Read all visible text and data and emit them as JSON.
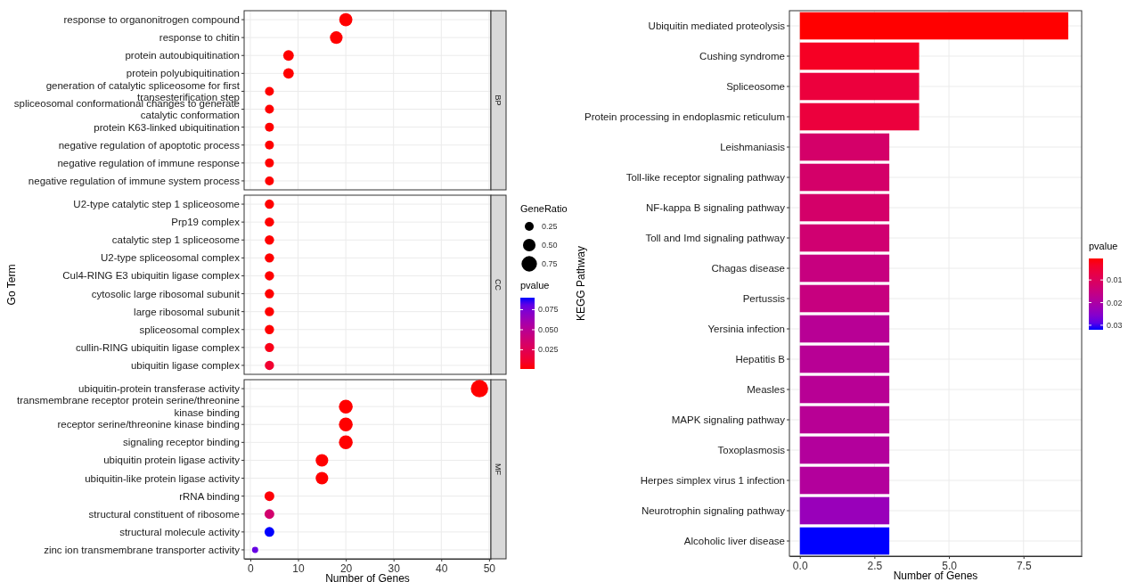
{
  "chart_data": [
    {
      "type": "scatter",
      "orientation": "horizontal",
      "xlabel": "Number of Genes",
      "ylabel": "Go Term",
      "annotations": [
        "BP",
        "CC",
        "MF"
      ],
      "legend_title": "GeneRatio",
      "size_legend": [
        0.25,
        {
          "value": 0.5,
          "label": "0.50"
        },
        0.75
      ],
      "clabel": "pvalue",
      "clim": [
        0.001,
        0.09
      ],
      "cticks": [
        0.025,
        {
          "value": 0.05,
          "label": "0.050"
        },
        0.075
      ],
      "categories": [
        "response to organonitrogen compound",
        "response to chitin",
        "protein autoubiquitination",
        "protein polyubiquitination",
        "generation of catalytic spliceosome for first\ntransesterification step",
        "spliceosomal conformational changes to generate\ncatalytic conformation",
        "protein K63-linked ubiquitination",
        "negative regulation of apoptotic process",
        "negative regulation of immune response",
        "negative regulation of immune system process",
        "U2-type catalytic step 1 spliceosome",
        "Prp19 complex",
        "catalytic step 1 spliceosome",
        "U2-type spliceosomal complex",
        "Cul4-RING E3 ubiquitin ligase complex",
        "cytosolic large ribosomal subunit",
        "large ribosomal subunit",
        "spliceosomal complex",
        "cullin-RING ubiquitin ligase complex",
        "ubiquitin ligase complex",
        "ubiquitin-protein transferase activity",
        "transmembrane receptor protein serine/threonine\nkinase binding",
        "receptor serine/threonine kinase binding",
        "signaling receptor binding",
        "ubiquitin protein ligase activity",
        "ubiquitin-like protein ligase activity",
        "rRNA binding",
        "structural constituent of ribosome",
        "structural molecule activity",
        "zinc ion transmembrane transporter activity"
      ],
      "values": [
        20,
        18,
        8,
        8,
        4,
        4,
        4,
        4,
        4,
        4,
        4,
        4,
        4,
        4,
        4,
        4,
        4,
        4,
        4,
        4,
        48,
        20,
        20,
        20,
        15,
        15,
        4,
        4,
        4,
        1
      ],
      "sizes": [
        0.55,
        0.5,
        0.35,
        0.35,
        0.25,
        0.25,
        0.25,
        0.25,
        0.25,
        0.25,
        0.27,
        0.27,
        0.27,
        0.27,
        0.27,
        0.27,
        0.27,
        0.27,
        0.27,
        0.27,
        0.95,
        0.6,
        0.6,
        0.6,
        0.5,
        0.5,
        0.3,
        0.3,
        0.3,
        0.12
      ],
      "cvalues": [
        0.001,
        0.001,
        0.001,
        0.001,
        0.001,
        0.001,
        0.001,
        0.001,
        0.001,
        0.001,
        0.001,
        0.001,
        0.001,
        0.001,
        0.001,
        0.001,
        0.001,
        0.001,
        0.005,
        0.012,
        0.001,
        0.001,
        0.001,
        0.001,
        0.001,
        0.001,
        0.002,
        0.035,
        0.09,
        0.08
      ],
      "xlim": [
        -1.3,
        50.4
      ],
      "xticks": [
        0,
        10,
        20,
        30,
        40,
        50
      ],
      "grid": true
    },
    {
      "type": "bar",
      "orientation": "horizontal",
      "xlabel": "Number of Genes",
      "ylabel": "KEGG Pathway",
      "clabel": "pvalue",
      "clim": [
        0.032,
        0.0005
      ],
      "cticks": [
        0.01,
        0.02,
        0.03
      ],
      "categories": [
        "Ubiquitin mediated proteolysis",
        "Cushing syndrome",
        "Spliceosome",
        "Protein processing in endoplasmic reticulum",
        "Leishmaniasis",
        "Toll-like receptor signaling pathway",
        "NF-kappa B signaling pathway",
        "Toll and Imd signaling pathway",
        "Chagas disease",
        "Pertussis",
        "Yersinia infection",
        "Hepatitis B",
        "Measles",
        "MAPK signaling pathway",
        "Toxoplasmosis",
        "Herpes simplex virus 1 infection",
        "Neurotrophin signaling pathway",
        "Alcoholic liver disease"
      ],
      "values": [
        9,
        4,
        4,
        4,
        3,
        3,
        3,
        3,
        3,
        3,
        3,
        3,
        3,
        3,
        3,
        3,
        3,
        3
      ],
      "cvalues": [
        0.0005,
        0.003,
        0.006,
        0.006,
        0.012,
        0.012,
        0.012,
        0.013,
        0.015,
        0.015,
        0.018,
        0.018,
        0.018,
        0.018,
        0.019,
        0.019,
        0.023,
        0.032
      ],
      "xlim": [
        -0.35,
        9.45
      ],
      "xticks": [
        {
          "value": 0,
          "label": "0.0"
        },
        2.5,
        {
          "value": 5,
          "label": "5.0"
        },
        7.5
      ],
      "grid": true
    }
  ]
}
